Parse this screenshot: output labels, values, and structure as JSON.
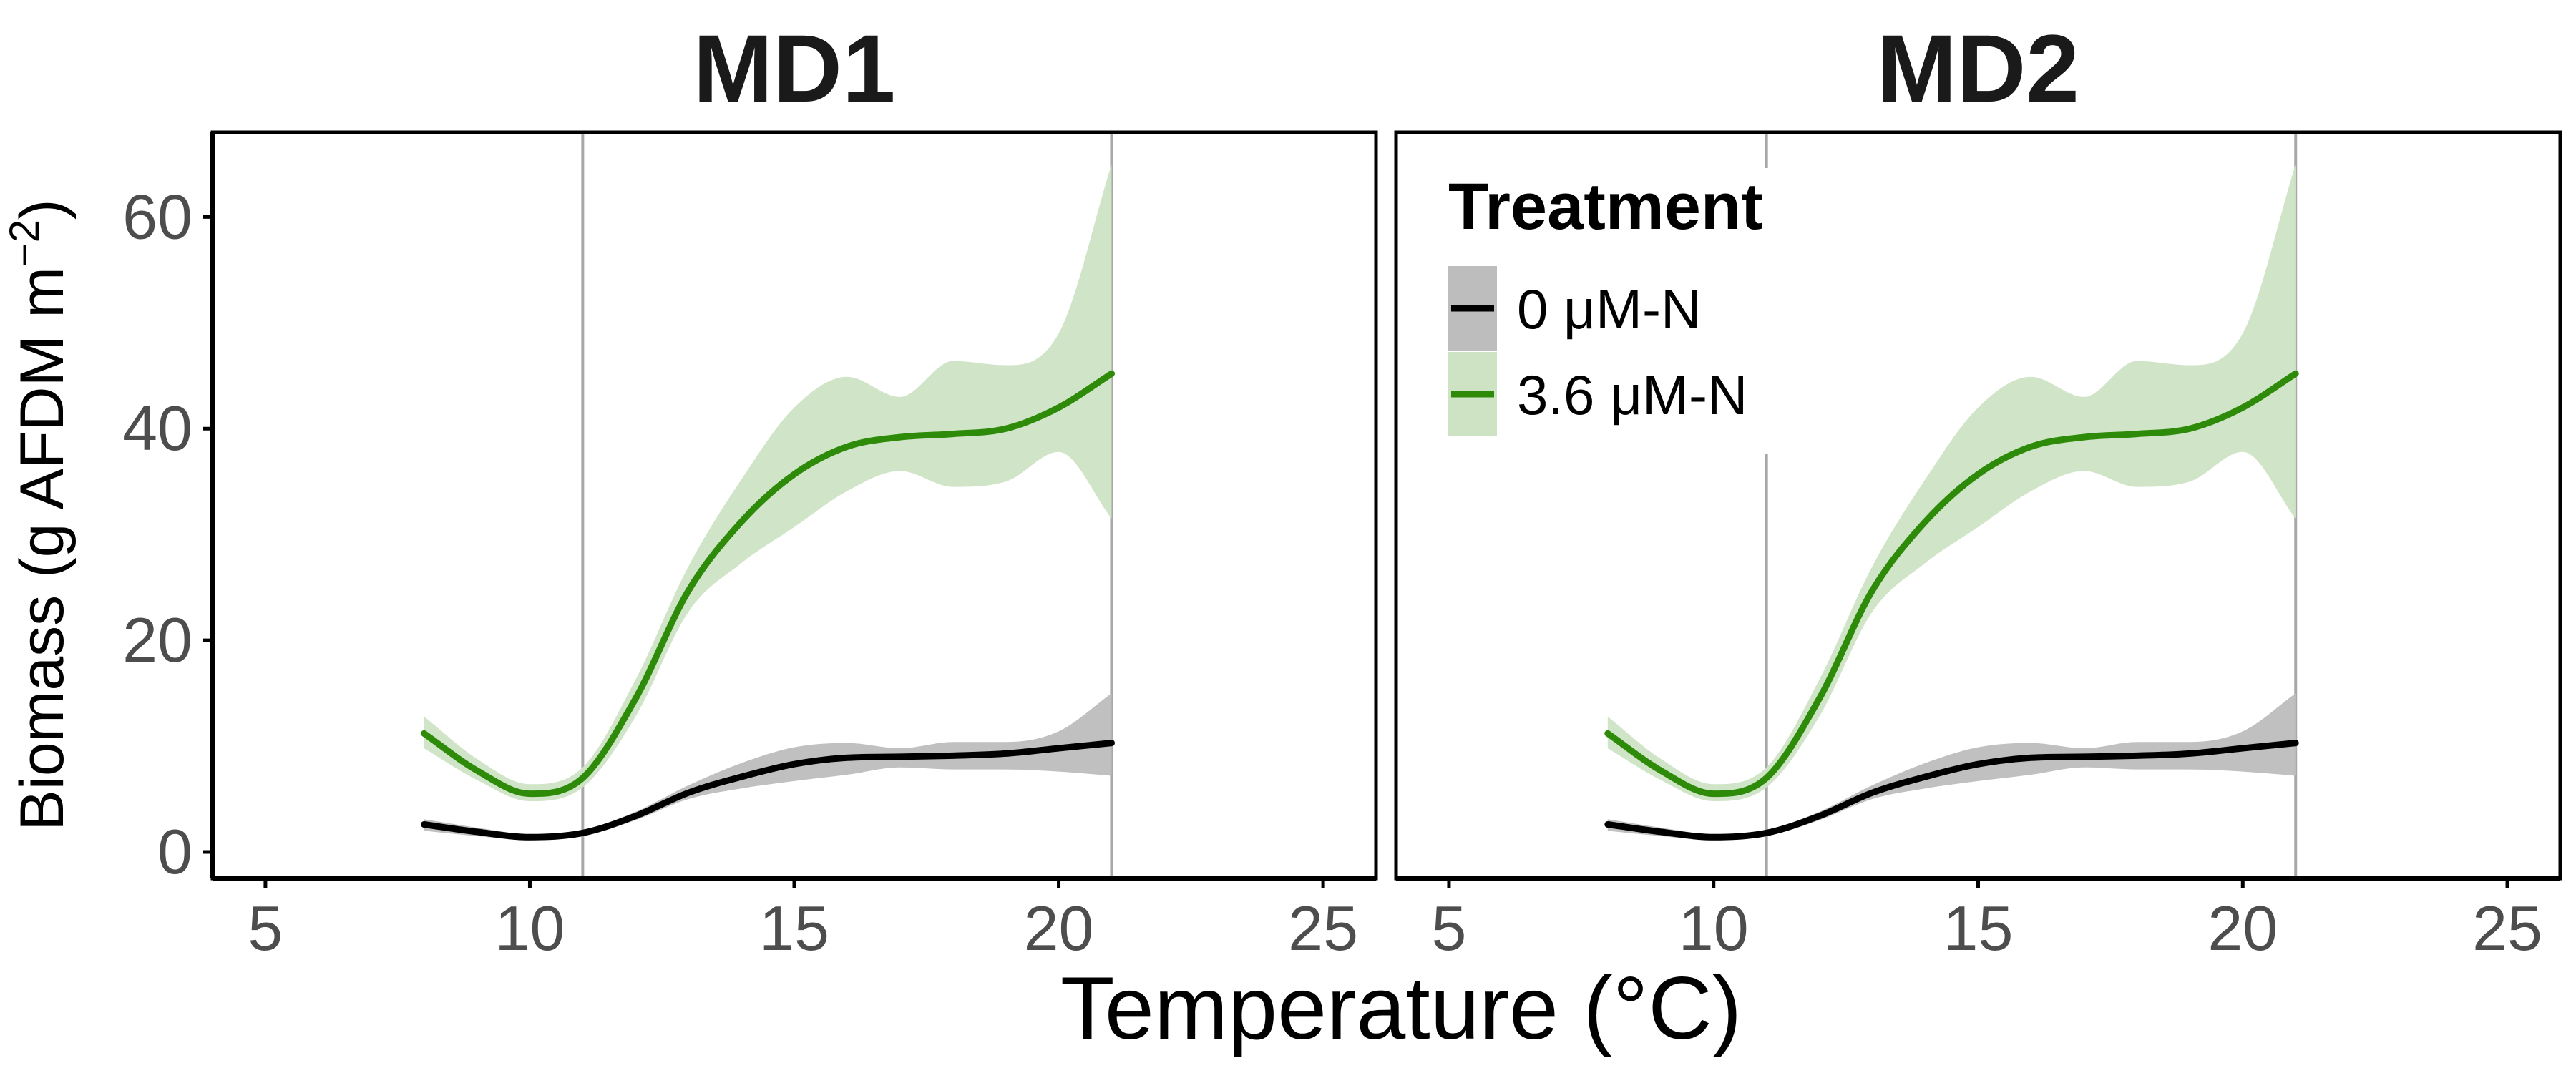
{
  "figure": {
    "xlabel": "Temperature (°C)",
    "ylabel_prefix": "Biomass (g AFDM m",
    "ylabel_superscript": "−2",
    "ylabel_suffix": ")"
  },
  "legend": {
    "title": "Treatment",
    "entries": [
      {
        "label": "0 μM-N",
        "color": "#000000",
        "band_color": "#bdbdbd"
      },
      {
        "label": "3.6 μM-N",
        "color": "#2e8b0a",
        "band_color": "#cde3c4"
      }
    ]
  },
  "colors": {
    "axis": "#000000",
    "vline": "#a8a8a8",
    "tick_text": "#4d4d4d",
    "legend_bg": "#ffffff"
  },
  "chart_data": [
    {
      "type": "line",
      "title": "MD1",
      "xlabel": "Temperature (°C)",
      "ylabel": "Biomass (g AFDM m−2)",
      "xlim": [
        4,
        26
      ],
      "ylim": [
        -2.5,
        68
      ],
      "xticks": [
        5,
        10,
        15,
        20,
        25
      ],
      "yticks": [
        0,
        20,
        40,
        60
      ],
      "vlines": [
        11,
        21
      ],
      "grid": false,
      "legend": false,
      "series": [
        {
          "name": "0 μM-N",
          "x": [
            8,
            9,
            10,
            11,
            12,
            13,
            14,
            15,
            16,
            17,
            18,
            19,
            20,
            21
          ],
          "y": [
            2.6,
            1.9,
            1.4,
            1.8,
            3.4,
            5.6,
            7.1,
            8.3,
            8.9,
            9.0,
            9.1,
            9.3,
            9.8,
            10.3
          ],
          "lower": [
            2.0,
            1.5,
            1.1,
            1.5,
            3.0,
            5.0,
            6.0,
            6.7,
            7.3,
            8.0,
            7.8,
            7.8,
            7.6,
            7.2
          ],
          "upper": [
            3.1,
            2.3,
            1.7,
            2.1,
            3.8,
            6.3,
            8.4,
            9.9,
            10.3,
            9.8,
            10.4,
            10.4,
            11.4,
            15.0
          ]
        },
        {
          "name": "3.6 μM-N",
          "x": [
            8,
            9,
            10,
            11,
            12,
            13,
            14,
            15,
            16,
            17,
            18,
            19,
            20,
            21
          ],
          "y": [
            11.2,
            7.7,
            5.5,
            7.0,
            14.5,
            24.7,
            31.2,
            35.7,
            38.3,
            39.2,
            39.5,
            40.0,
            42.0,
            45.2
          ],
          "lower": [
            9.8,
            6.8,
            4.8,
            6.1,
            12.8,
            22.7,
            27.3,
            30.7,
            34.1,
            36.0,
            34.5,
            35.0,
            37.8,
            31.5
          ],
          "upper": [
            12.8,
            8.8,
            6.4,
            8.0,
            16.3,
            27.0,
            35.2,
            42.0,
            44.9,
            43.0,
            46.4,
            46.0,
            49.0,
            65.0
          ]
        }
      ]
    },
    {
      "type": "line",
      "title": "MD2",
      "xlabel": "Temperature (°C)",
      "ylabel": "Biomass (g AFDM m−2)",
      "xlim": [
        4,
        26
      ],
      "ylim": [
        -2.5,
        68
      ],
      "xticks": [
        5,
        10,
        15,
        20,
        25
      ],
      "yticks": [
        0,
        20,
        40,
        60
      ],
      "vlines": [
        11,
        21
      ],
      "grid": false,
      "legend": true,
      "legend_position": "top-left",
      "series": [
        {
          "name": "0 μM-N",
          "x": [
            8,
            9,
            10,
            11,
            12,
            13,
            14,
            15,
            16,
            17,
            18,
            19,
            20,
            21
          ],
          "y": [
            2.6,
            1.9,
            1.4,
            1.8,
            3.4,
            5.6,
            7.1,
            8.3,
            8.9,
            9.0,
            9.1,
            9.3,
            9.8,
            10.3
          ],
          "lower": [
            2.0,
            1.5,
            1.1,
            1.5,
            3.0,
            5.0,
            6.0,
            6.7,
            7.3,
            8.0,
            7.8,
            7.8,
            7.6,
            7.2
          ],
          "upper": [
            3.1,
            2.3,
            1.7,
            2.1,
            3.8,
            6.3,
            8.4,
            9.9,
            10.3,
            9.8,
            10.4,
            10.4,
            11.4,
            15.0
          ]
        },
        {
          "name": "3.6 μM-N",
          "x": [
            8,
            9,
            10,
            11,
            12,
            13,
            14,
            15,
            16,
            17,
            18,
            19,
            20,
            21
          ],
          "y": [
            11.2,
            7.7,
            5.5,
            7.0,
            14.5,
            24.7,
            31.2,
            35.7,
            38.3,
            39.2,
            39.5,
            40.0,
            42.0,
            45.2
          ],
          "lower": [
            9.8,
            6.8,
            4.8,
            6.1,
            12.8,
            22.7,
            27.3,
            30.7,
            34.1,
            36.0,
            34.5,
            35.0,
            37.8,
            31.5
          ],
          "upper": [
            12.8,
            8.8,
            6.4,
            8.0,
            16.3,
            27.0,
            35.2,
            42.0,
            44.9,
            43.0,
            46.4,
            46.0,
            49.0,
            65.0
          ]
        }
      ]
    }
  ]
}
